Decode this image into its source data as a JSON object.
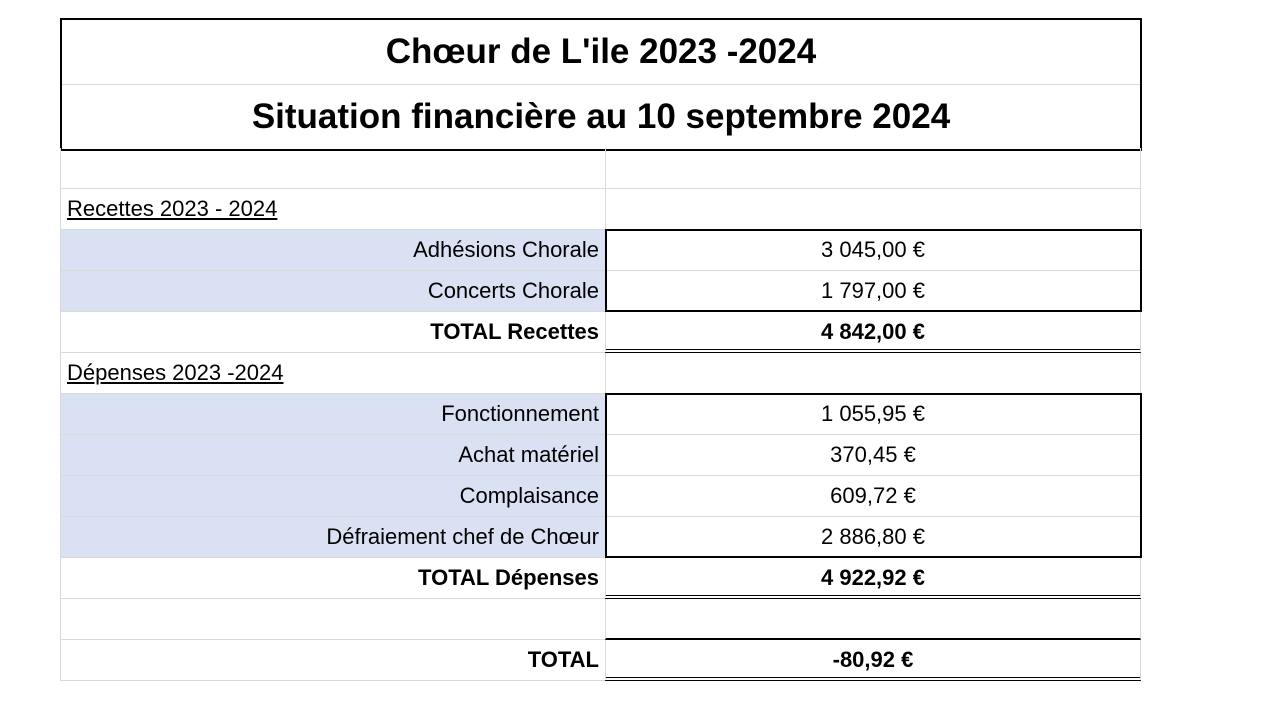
{
  "title": {
    "line1": "Chœur de L'ile 2023 -2024",
    "line2": "Situation financière au 10 septembre 2024"
  },
  "recettes": {
    "heading": "Recettes 2023 - 2024",
    "items": [
      {
        "label": "Adhésions Chorale",
        "value": "3 045,00 €"
      },
      {
        "label": "Concerts Chorale",
        "value": "1 797,00 €"
      }
    ],
    "total_label": "TOTAL Recettes",
    "total_value": "4 842,00 €"
  },
  "depenses": {
    "heading": "Dépenses 2023 -2024",
    "items": [
      {
        "label": "Fonctionnement",
        "value": "1 055,95 €"
      },
      {
        "label": "Achat matériel",
        "value": "370,45 €"
      },
      {
        "label": "Complaisance",
        "value": "609,72 €"
      },
      {
        "label": "Défraiement chef de Chœur",
        "value": "2 886,80 €"
      }
    ],
    "total_label": "TOTAL Dépenses",
    "total_value": "4 922,92 €"
  },
  "total": {
    "label": "TOTAL",
    "value": "-80,92 €"
  },
  "colors": {
    "item_fill": "#d9e1f2",
    "grid": "#d9d9d9"
  }
}
